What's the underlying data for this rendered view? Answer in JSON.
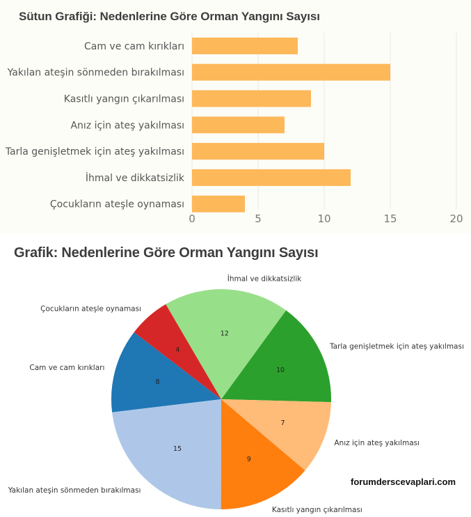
{
  "bar_chart": {
    "title": "Sütun Grafiği: Nedenlerine Göre Orman Yangını Sayısı"
  },
  "pie_chart": {
    "title": "Grafik: Nedenlerine Göre Orman Yangını Sayısı"
  },
  "watermark": "forumderscevaplari.com",
  "colors": {
    "bar": "#fdb85a",
    "grid": "#e6e6e6",
    "panel_bg": "#fdfdf7"
  },
  "chart_data": [
    {
      "type": "bar",
      "orientation": "horizontal",
      "title": "Sütun Grafiği: Nedenlerine Göre Orman Yangını Sayısı",
      "categories": [
        "Cam ve cam kırıkları",
        "Yakılan ateşin sönmeden bırakılması",
        "Kasıtlı yangın çıkarılması",
        "Anız için ateş yakılması",
        "Tarla genişletmek için ateş yakılması",
        "İhmal ve dikkatsizlik",
        "Çocukların ateşle oynaması"
      ],
      "values": [
        8,
        15,
        9,
        7,
        10,
        12,
        4
      ],
      "xlabel": "",
      "ylabel": "",
      "xlim": [
        0,
        20
      ],
      "xticks": [
        "0",
        "5",
        "10",
        "15",
        "20"
      ],
      "grid": true,
      "color": "#fdb85a"
    },
    {
      "type": "pie",
      "title": "Grafik: Nedenlerine Göre Orman Yangını Sayısı",
      "slices": [
        {
          "label": "Tarla genişletmek için ateş yakılması",
          "value": 10,
          "color": "#2ca02c"
        },
        {
          "label": "İhmal ve dikkatsizlik",
          "value": 12,
          "color": "#98df8a"
        },
        {
          "label": "Çocukların ateşle oynaması",
          "value": 4,
          "color": "#d62728"
        },
        {
          "label": "Cam ve cam kırıkları",
          "value": 8,
          "color": "#1f77b4"
        },
        {
          "label": "Yakılan ateşin sönmeden bırakılması",
          "value": 15,
          "color": "#aec7e8"
        },
        {
          "label": "Kasıtlı yangın çıkarılması",
          "value": 9,
          "color": "#ff7f0e"
        },
        {
          "label": "Anız için ateş yakılması",
          "value": 7,
          "color": "#ffbb78"
        }
      ],
      "start_angle_deg": -1.5,
      "direction": "counterclockwise",
      "value_labels": true
    }
  ]
}
